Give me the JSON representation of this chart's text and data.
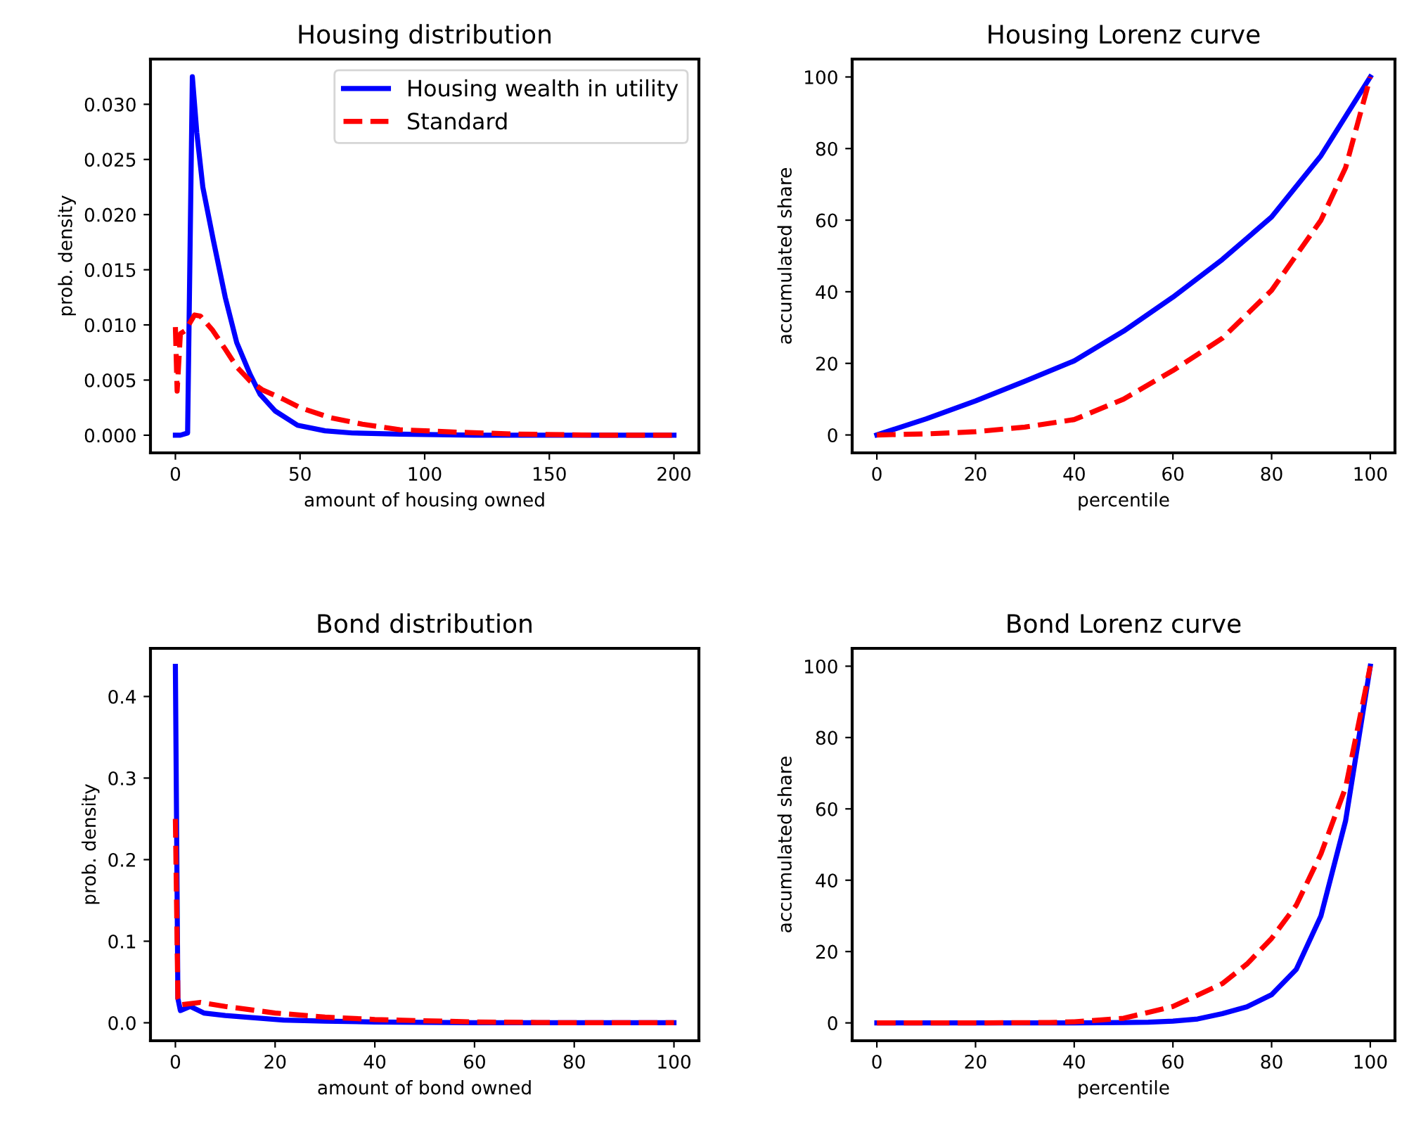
{
  "chart_data": [
    {
      "type": "line",
      "title": "Housing distribution",
      "xlabel": "amount of housing owned",
      "ylabel": "prob. density",
      "xlim": [
        -10,
        210
      ],
      "ylim": [
        -0.0016,
        0.0341
      ],
      "xticks": [
        0,
        50,
        100,
        150,
        200
      ],
      "yticks": [
        {
          "value": 0,
          "label": "0.000"
        },
        {
          "value": 0.005,
          "label": "0.005"
        },
        {
          "value": 0.01,
          "label": "0.010"
        },
        {
          "value": 0.015,
          "label": "0.015"
        },
        {
          "value": 0.02,
          "label": "0.020"
        },
        {
          "value": 0.025,
          "label": "0.025"
        },
        {
          "value": 0.03,
          "label": "0.030"
        }
      ],
      "legend": "top right",
      "grid": false,
      "series": [
        {
          "name": "Housing wealth in utility",
          "color": "#0000ff",
          "line_style": "solid",
          "x": [
            0,
            2,
            4.9,
            6.8,
            8.6,
            11,
            15.2,
            20,
            24.6,
            30,
            34,
            40,
            49,
            60,
            71,
            90,
            120,
            160,
            200
          ],
          "values": [
            0,
            0,
            0.0002,
            0.0325,
            0.0274,
            0.0225,
            0.0177,
            0.0125,
            0.0084,
            0.0055,
            0.0037,
            0.0022,
            0.0009,
            0.0004,
            0.0002,
            0.0001,
            0,
            0,
            0
          ]
        },
        {
          "name": "Standard",
          "color": "#ff0000",
          "line_style": "dashed",
          "x": [
            0,
            0.7,
            2,
            4,
            7.7,
            10,
            15,
            20,
            24.6,
            30,
            35,
            43,
            50,
            62,
            75,
            90,
            110,
            137,
            170,
            200
          ],
          "values": [
            0.0098,
            0.004,
            0.0092,
            0.0095,
            0.0109,
            0.0108,
            0.0095,
            0.0078,
            0.0062,
            0.0049,
            0.0041,
            0.0033,
            0.0025,
            0.0016,
            0.001,
            0.0005,
            0.0003,
            0.0001,
            0,
            0
          ]
        }
      ]
    },
    {
      "type": "line",
      "title": "Housing Lorenz curve",
      "xlabel": "percentile",
      "ylabel": "accumulated share",
      "xlim": [
        -5,
        105
      ],
      "ylim": [
        -5,
        105
      ],
      "xticks": [
        0,
        20,
        40,
        60,
        80,
        100
      ],
      "yticks": [
        0,
        20,
        40,
        60,
        80,
        100
      ],
      "grid": false,
      "series": [
        {
          "color": "#0000ff",
          "line_style": "solid",
          "x": [
            0,
            10,
            20,
            30,
            40,
            50,
            60,
            70,
            80,
            90,
            100
          ],
          "values": [
            0,
            4.5,
            9.5,
            15,
            20.7,
            29,
            38.5,
            49,
            60.9,
            78,
            100
          ]
        },
        {
          "color": "#ff0000",
          "line_style": "dashed",
          "x": [
            0,
            10,
            20,
            30,
            40,
            50,
            60,
            70,
            80,
            90,
            95,
            100
          ],
          "values": [
            0,
            0.3,
            0.9,
            2.2,
            4.3,
            10,
            18,
            27,
            40.4,
            60,
            74.7,
            100
          ]
        }
      ]
    },
    {
      "type": "line",
      "title": "Bond distribution",
      "xlabel": "amount of bond owned",
      "ylabel": "prob. density",
      "xlim": [
        -5,
        105
      ],
      "ylim": [
        -0.022,
        0.459
      ],
      "xticks": [
        0,
        20,
        40,
        60,
        80,
        100
      ],
      "yticks": [
        {
          "value": 0,
          "label": "0.0"
        },
        {
          "value": 0.1,
          "label": "0.1"
        },
        {
          "value": 0.2,
          "label": "0.2"
        },
        {
          "value": 0.3,
          "label": "0.3"
        },
        {
          "value": 0.4,
          "label": "0.4"
        }
      ],
      "grid": false,
      "series": [
        {
          "color": "#0000ff",
          "line_style": "solid",
          "x": [
            0,
            0.5,
            1,
            3,
            5.7,
            10,
            21.7,
            30,
            40,
            60,
            80,
            100
          ],
          "values": [
            0.437,
            0.03,
            0.015,
            0.02,
            0.012,
            0.009,
            0.0034,
            0.002,
            0.001,
            0,
            0,
            0
          ]
        },
        {
          "color": "#ff0000",
          "line_style": "dashed",
          "x": [
            0,
            0.5,
            1,
            5,
            10,
            20,
            30,
            40,
            60,
            80,
            100
          ],
          "values": [
            0.25,
            0.03,
            0.022,
            0.025,
            0.02,
            0.012,
            0.007,
            0.004,
            0.001,
            0,
            0
          ]
        }
      ]
    },
    {
      "type": "line",
      "title": "Bond Lorenz curve",
      "xlabel": "percentile",
      "ylabel": "accumulated share",
      "xlim": [
        -5,
        105
      ],
      "ylim": [
        -5,
        105
      ],
      "xticks": [
        0,
        20,
        40,
        60,
        80,
        100
      ],
      "yticks": [
        0,
        20,
        40,
        60,
        80,
        100
      ],
      "grid": false,
      "series": [
        {
          "color": "#0000ff",
          "line_style": "solid",
          "x": [
            0,
            20,
            40,
            50,
            55,
            60,
            65,
            70,
            75,
            80,
            85,
            90,
            95,
            100
          ],
          "values": [
            0,
            0,
            0,
            0.1,
            0.2,
            0.5,
            1.1,
            2.6,
            4.5,
            7.9,
            15,
            30,
            56.7,
            100
          ]
        },
        {
          "color": "#ff0000",
          "line_style": "dashed",
          "x": [
            0,
            20,
            35,
            40,
            50,
            60,
            70,
            75,
            80,
            85,
            90,
            95,
            100
          ],
          "values": [
            0,
            0,
            0.1,
            0.3,
            1.3,
            4.6,
            11,
            16.5,
            23.7,
            33,
            47.4,
            66,
            100
          ]
        }
      ]
    }
  ]
}
